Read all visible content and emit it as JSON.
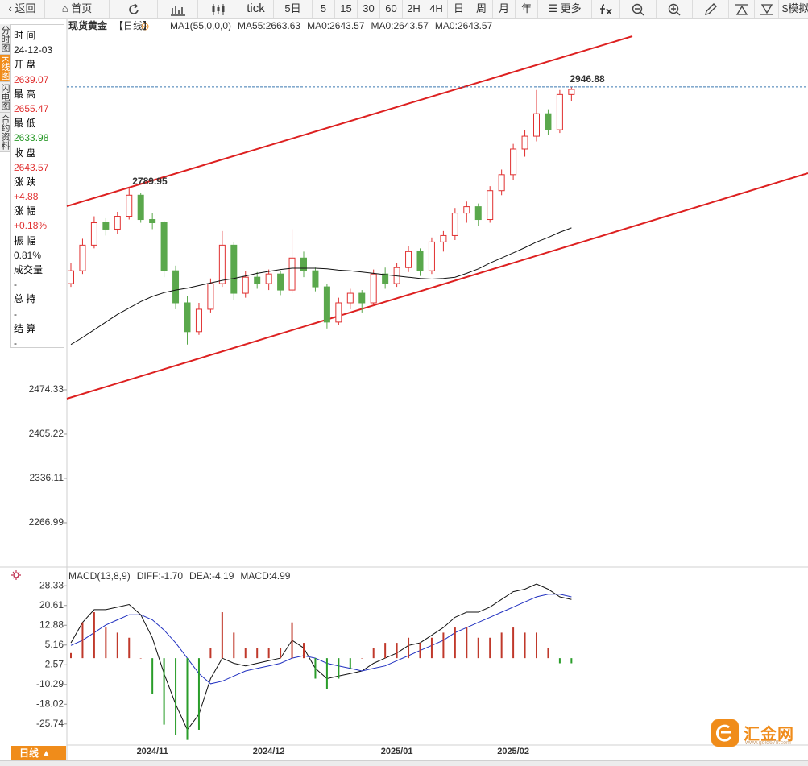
{
  "toolbar": [
    "返回",
    "首页",
    "tick",
    "5日",
    "5",
    "15",
    "30",
    "60",
    "2H",
    "4H",
    "日",
    "周",
    "月",
    "年",
    "更多",
    "模拟"
  ],
  "side_tabs": [
    "分时图",
    "K线图",
    "闪电图",
    "合约资料"
  ],
  "side_tab_selected": 1,
  "info_panel": {
    "rows": [
      {
        "label": "时 间",
        "value": "24-12-03",
        "color": "#222"
      },
      {
        "label": "开 盘",
        "value": "2639.07",
        "color": "#e03030"
      },
      {
        "label": "最 高",
        "value": "2655.47",
        "color": "#e03030"
      },
      {
        "label": "最 低",
        "value": "2633.98",
        "color": "#2a9a2a"
      },
      {
        "label": "收 盘",
        "value": "2643.57",
        "color": "#e03030"
      },
      {
        "label": "涨 跌",
        "value": "+4.88",
        "color": "#e03030"
      },
      {
        "label": "涨 幅",
        "value": "+0.18%",
        "color": "#e03030"
      },
      {
        "label": "振 幅",
        "value": "0.81%",
        "color": "#222"
      },
      {
        "label": "成交量",
        "value": "-",
        "color": "#222"
      },
      {
        "label": "总 持",
        "value": "-",
        "color": "#222"
      },
      {
        "label": "结 算",
        "value": "-",
        "color": "#222"
      }
    ]
  },
  "bottom_tab": "日线 ▲",
  "logo": {
    "name": "汇金网",
    "url": "www.gold678.com"
  },
  "chart_data": [
    {
      "type": "candlestick",
      "title": "现货黄金",
      "period": "【日线】",
      "indicator": "MA1(55,0,0,0)",
      "categories": [
        null,
        null,
        null,
        null,
        null,
        null,
        null,
        "2024/11",
        null,
        null,
        null,
        null,
        null,
        null,
        null,
        null,
        null,
        "2024/12",
        null,
        null,
        null,
        null,
        null,
        null,
        null,
        null,
        null,
        null,
        "2025/01",
        null,
        null,
        null,
        null,
        null,
        null,
        null,
        null,
        null,
        "2025/02",
        null,
        null,
        null,
        null,
        null
      ],
      "candles": [
        [
          2640,
          2672,
          2635,
          2660
        ],
        [
          2660,
          2710,
          2655,
          2700
        ],
        [
          2700,
          2745,
          2695,
          2735
        ],
        [
          2735,
          2742,
          2715,
          2725
        ],
        [
          2725,
          2752,
          2718,
          2745
        ],
        [
          2745,
          2789.95,
          2740,
          2778
        ],
        [
          2778,
          2782,
          2735,
          2740
        ],
        [
          2740,
          2750,
          2725,
          2735
        ],
        [
          2735,
          2738,
          2650,
          2660
        ],
        [
          2660,
          2668,
          2600,
          2610
        ],
        [
          2610,
          2620,
          2545,
          2565
        ],
        [
          2565,
          2610,
          2560,
          2600
        ],
        [
          2600,
          2648,
          2595,
          2640
        ],
        [
          2640,
          2722,
          2635,
          2700
        ],
        [
          2700,
          2705,
          2615,
          2625
        ],
        [
          2625,
          2660,
          2618,
          2650
        ],
        [
          2650,
          2658,
          2632,
          2640
        ],
        [
          2640,
          2662,
          2630,
          2655
        ],
        [
          2655,
          2660,
          2622,
          2630
        ],
        [
          2630,
          2725,
          2625,
          2680
        ],
        [
          2680,
          2690,
          2650,
          2660
        ],
        [
          2660,
          2665,
          2628,
          2635
        ],
        [
          2635,
          2640,
          2570,
          2580
        ],
        [
          2580,
          2618,
          2575,
          2610
        ],
        [
          2610,
          2632,
          2600,
          2625
        ],
        [
          2625,
          2630,
          2595,
          2610
        ],
        [
          2610,
          2662,
          2605,
          2655
        ],
        [
          2655,
          2665,
          2632,
          2640
        ],
        [
          2640,
          2672,
          2635,
          2665
        ],
        [
          2665,
          2698,
          2658,
          2690
        ],
        [
          2690,
          2695,
          2652,
          2660
        ],
        [
          2660,
          2712,
          2655,
          2705
        ],
        [
          2705,
          2722,
          2690,
          2715
        ],
        [
          2715,
          2758,
          2708,
          2750
        ],
        [
          2750,
          2768,
          2735,
          2760
        ],
        [
          2760,
          2765,
          2730,
          2740
        ],
        [
          2740,
          2792,
          2735,
          2785
        ],
        [
          2785,
          2818,
          2778,
          2810
        ],
        [
          2810,
          2858,
          2802,
          2850
        ],
        [
          2850,
          2880,
          2838,
          2870
        ],
        [
          2870,
          2942,
          2862,
          2905
        ],
        [
          2905,
          2912,
          2872,
          2880
        ],
        [
          2880,
          2942,
          2875,
          2935
        ],
        [
          2935,
          2946.88,
          2925,
          2943
        ]
      ],
      "up_color": "#e03030",
      "down_color": "#5aa84c",
      "series": [
        {
          "name": "MA55:2663.63",
          "color": "#111111",
          "values": [
            2545,
            2556,
            2568,
            2580,
            2592,
            2602,
            2612,
            2620,
            2626,
            2630,
            2633,
            2637,
            2641,
            2645,
            2648,
            2652,
            2656,
            2659,
            2662,
            2664,
            2664,
            2664,
            2663,
            2661,
            2660,
            2658,
            2656,
            2654,
            2652,
            2650,
            2648,
            2647,
            2648,
            2650,
            2656,
            2663,
            2672,
            2680,
            2688,
            2696,
            2705,
            2712,
            2720,
            2727
          ]
        }
      ],
      "extra_labels": [
        {
          "text": "MA0:2643.57",
          "color": "#2b3bd0"
        },
        {
          "text": "MA0:2643.57",
          "color": "#d020d0"
        },
        {
          "text": "MA0:2643.57",
          "color": "#e8a020"
        }
      ],
      "annotations": {
        "high": 2789.95,
        "last": 2946.88
      },
      "ylim": [
        2199.1,
        3054.8
      ],
      "yticks": [
        2266.99,
        2336.11,
        2405.22,
        2474.33
      ]
    },
    {
      "type": "macd",
      "title": "MACD(13,8,9)",
      "series": [
        {
          "name": "DIFF:-1.70",
          "color": "#111111",
          "values": [
            6,
            14,
            19,
            19,
            20,
            21,
            17,
            8,
            -6,
            -18,
            -28,
            -22,
            -8,
            0,
            -2,
            -3,
            -2,
            -1,
            0,
            7,
            4,
            -4,
            -8,
            -7,
            -6,
            -5,
            -2,
            0,
            2,
            5,
            6,
            9,
            12,
            16,
            18,
            18,
            20,
            23,
            26,
            27,
            29,
            27,
            24,
            23
          ]
        },
        {
          "name": "DEA:-4.19",
          "color": "#2030c0",
          "values": [
            5,
            7,
            10,
            13,
            15,
            17,
            17,
            15,
            11,
            6,
            0,
            -6,
            -10,
            -9,
            -7,
            -5,
            -4,
            -3,
            -2,
            0,
            1,
            0,
            -2,
            -3,
            -4,
            -5,
            -4,
            -3,
            -1,
            1,
            3,
            5,
            7,
            10,
            12,
            14,
            16,
            18,
            20,
            22,
            24,
            25,
            25,
            24
          ]
        },
        {
          "name": "MACD:4.99",
          "color": "#d020d0",
          "up_color": "#c0392b",
          "down_color": "#2a9d2a",
          "values": [
            2,
            14,
            18,
            12,
            10,
            8,
            0,
            -14,
            -26,
            -30,
            -32,
            -28,
            4,
            18,
            10,
            4,
            4,
            4,
            4,
            14,
            6,
            -8,
            -12,
            -8,
            -4,
            0,
            4,
            6,
            6,
            8,
            6,
            8,
            10,
            12,
            12,
            8,
            8,
            10,
            12,
            10,
            10,
            4,
            -2,
            -2
          ]
        }
      ],
      "ylim": [
        -34,
        34.4
      ],
      "yticks": [
        -25.74,
        -18.02,
        -10.29,
        -2.57,
        5.16,
        12.88,
        20.61,
        28.33
      ]
    }
  ]
}
